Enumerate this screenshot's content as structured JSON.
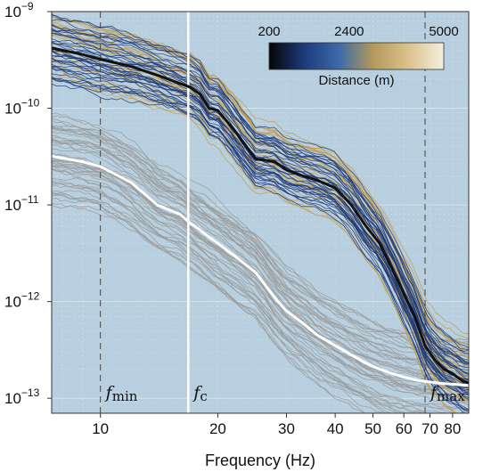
{
  "chart_data": {
    "type": "line",
    "title": "",
    "xlabel": "Frequency (Hz)",
    "ylabel": "",
    "x_scale": "log",
    "y_scale": "log",
    "xlim": [
      7.5,
      88
    ],
    "ylim": [
      7e-14,
      1e-09
    ],
    "x_ticks": [
      10,
      20,
      30,
      40,
      50,
      60,
      70,
      80
    ],
    "x_tick_labels": [
      "10",
      "20",
      "30",
      "40",
      "50",
      "60",
      "70",
      "80"
    ],
    "y_ticks": [
      1e-13,
      1e-12,
      1e-11,
      1e-10,
      1e-09
    ],
    "y_tick_labels": [
      {
        "base": "10",
        "exp": "−13"
      },
      {
        "base": "10",
        "exp": "−12"
      },
      {
        "base": "10",
        "exp": "−11"
      },
      {
        "base": "10",
        "exp": "−10"
      },
      {
        "base": "10",
        "exp": "−9"
      }
    ],
    "grid": true,
    "vertical_markers": [
      {
        "x": 10.0,
        "label": "f",
        "sub": "min",
        "style": "dashed"
      },
      {
        "x": 16.8,
        "label": "f",
        "sub": "c",
        "style": "solid-white"
      },
      {
        "x": 68.0,
        "label": "f",
        "sub": "max",
        "style": "dashed"
      }
    ],
    "series": [
      {
        "color": "#111111",
        "x": [
          7.5,
          9,
          10,
          12,
          14,
          16,
          17,
          18,
          19,
          20,
          22,
          25,
          28,
          30,
          33,
          36,
          40,
          44,
          48,
          52,
          56,
          60,
          64,
          68,
          72,
          76,
          80,
          85,
          88
        ],
        "y": [
          4.2e-10,
          3.6e-10,
          3.2e-10,
          2.7e-10,
          2.2e-10,
          1.8e-10,
          1.65e-10,
          1.4e-10,
          1e-10,
          9.5e-11,
          6e-11,
          3e-11,
          2.8e-11,
          2.3e-11,
          2e-11,
          1.8e-11,
          1.5e-11,
          1e-11,
          6e-12,
          4e-12,
          2.2e-12,
          1.2e-12,
          7e-13,
          3.5e-13,
          2.5e-13,
          2e-13,
          1.8e-13,
          1.5e-13,
          1.45e-13
        ]
      },
      {
        "color": "#ffffff",
        "x": [
          7.5,
          9,
          10,
          12,
          14,
          16,
          17,
          18,
          20,
          22,
          25,
          28,
          30,
          33,
          36,
          40,
          44,
          48,
          52,
          56,
          60,
          64,
          68,
          72,
          76,
          80,
          88
        ],
        "y": [
          3.2e-11,
          2.8e-11,
          2.5e-11,
          1.7e-11,
          1e-11,
          8e-12,
          6.5e-12,
          5.5e-12,
          4e-12,
          3e-12,
          2e-12,
          1.1e-12,
          8e-13,
          6e-13,
          4.5e-13,
          3.5e-13,
          2.8e-13,
          2.3e-13,
          2e-13,
          1.8e-13,
          1.65e-13,
          1.55e-13,
          1.5e-13,
          1.45e-13,
          1.42e-13,
          1.4e-13,
          1.35e-13
        ]
      }
    ],
    "colorbar": {
      "label": "Distance (m)",
      "ticks": [
        "200",
        "2400",
        "5000"
      ],
      "tick_values": [
        200,
        2400,
        5000
      ],
      "range": [
        200,
        5000
      ],
      "placement": "top-right",
      "gradient": [
        "#050505",
        "#1d3a7a",
        "#3d6aa8",
        "#b59a5a",
        "#dcc28c",
        "#f4eee0"
      ]
    }
  },
  "colors": {
    "plot_background": "#b7cfdf",
    "near_traces": "#1d3a7a",
    "far_traces": "#c29a45",
    "attenuated_traces": "#9a9a9a"
  }
}
